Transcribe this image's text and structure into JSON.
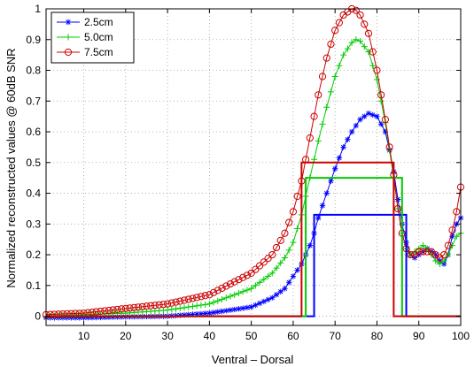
{
  "chart_data": {
    "type": "line",
    "xlabel": "Ventral – Dorsal",
    "ylabel": "Normalized reconstructed values @ 60dB SNR",
    "xlim": [
      1,
      100
    ],
    "ylim": [
      -0.03,
      1
    ],
    "xticks": [
      10,
      20,
      30,
      40,
      50,
      60,
      70,
      80,
      90,
      100
    ],
    "yticks": [
      0,
      0.1,
      0.2,
      0.3,
      0.4,
      0.5,
      0.6,
      0.7,
      0.8,
      0.9,
      1
    ],
    "ytick_labels": [
      "0",
      "0.1",
      "0.2",
      "0.3",
      "0.4",
      "0.5",
      "0.6",
      "0.7",
      "0.8",
      "0.9",
      "1"
    ],
    "grid": true,
    "legend_position": "top-left",
    "series": [
      {
        "name": "2.5cm",
        "color": "#0000ff",
        "marker": "star",
        "x": [
          1,
          10,
          20,
          30,
          40,
          50,
          55,
          58,
          60,
          62,
          63,
          64,
          65,
          66,
          68,
          70,
          72,
          74,
          76,
          78,
          80,
          82,
          83,
          84,
          85,
          86,
          87,
          88,
          89,
          90,
          91,
          92,
          93,
          94,
          95,
          96,
          97,
          98,
          99,
          100
        ],
        "values": [
          -0.005,
          -0.005,
          -0.002,
          0.0,
          0.01,
          0.03,
          0.06,
          0.09,
          0.13,
          0.17,
          0.2,
          0.23,
          0.27,
          0.32,
          0.4,
          0.48,
          0.55,
          0.6,
          0.64,
          0.66,
          0.65,
          0.6,
          0.54,
          0.47,
          0.38,
          0.3,
          0.24,
          0.2,
          0.19,
          0.2,
          0.21,
          0.22,
          0.21,
          0.2,
          0.18,
          0.17,
          0.2,
          0.26,
          0.3,
          0.32
        ]
      },
      {
        "name": "5.0cm",
        "color": "#00cc00",
        "marker": "plus",
        "x": [
          1,
          10,
          20,
          30,
          40,
          50,
          55,
          58,
          60,
          62,
          64,
          66,
          68,
          70,
          72,
          74,
          75,
          76,
          78,
          80,
          82,
          84,
          85,
          86,
          87,
          88,
          89,
          90,
          91,
          92,
          93,
          94,
          95,
          96,
          97,
          98,
          99,
          100
        ],
        "values": [
          0.0,
          0.005,
          0.01,
          0.02,
          0.04,
          0.09,
          0.14,
          0.19,
          0.24,
          0.33,
          0.45,
          0.57,
          0.68,
          0.78,
          0.85,
          0.89,
          0.9,
          0.895,
          0.86,
          0.77,
          0.63,
          0.45,
          0.35,
          0.27,
          0.22,
          0.2,
          0.21,
          0.22,
          0.23,
          0.22,
          0.2,
          0.18,
          0.17,
          0.18,
          0.2,
          0.23,
          0.26,
          0.27
        ]
      },
      {
        "name": "7.5cm",
        "color": "#cc0000",
        "marker": "circle",
        "x": [
          1,
          10,
          20,
          30,
          40,
          50,
          55,
          58,
          60,
          62,
          64,
          66,
          68,
          70,
          72,
          74,
          75,
          76,
          78,
          80,
          82,
          84,
          85,
          86,
          87,
          88,
          89,
          90,
          91,
          92,
          93,
          94,
          95,
          96,
          97,
          98,
          99,
          100
        ],
        "values": [
          0.005,
          0.01,
          0.025,
          0.04,
          0.07,
          0.14,
          0.2,
          0.27,
          0.34,
          0.44,
          0.58,
          0.72,
          0.84,
          0.93,
          0.98,
          1.0,
          0.995,
          0.98,
          0.92,
          0.8,
          0.64,
          0.46,
          0.35,
          0.27,
          0.22,
          0.2,
          0.2,
          0.21,
          0.21,
          0.21,
          0.21,
          0.2,
          0.19,
          0.2,
          0.23,
          0.28,
          0.34,
          0.42
        ]
      }
    ],
    "reference_boxes": [
      {
        "name": "2.5cm",
        "color": "#0000ff",
        "x_start": 65,
        "x_end": 87,
        "height": 0.33
      },
      {
        "name": "5.0cm",
        "color": "#00cc00",
        "x_start": 63,
        "x_end": 86,
        "height": 0.45
      },
      {
        "name": "7.5cm",
        "color": "#cc0000",
        "x_start": 62,
        "x_end": 84,
        "height": 0.5
      }
    ]
  }
}
